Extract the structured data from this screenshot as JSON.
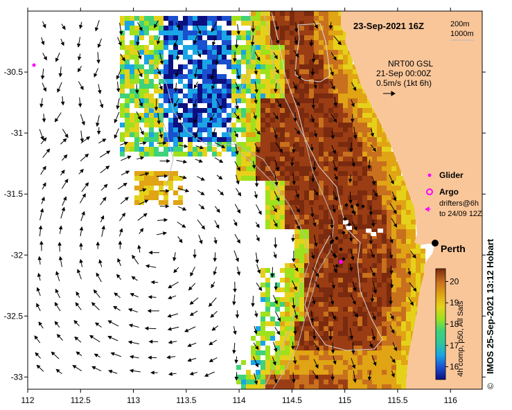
{
  "header": {
    "date_label": "23-Sep-2021 16Z",
    "contour_200": "200m",
    "contour_1000": "1000m"
  },
  "current_info": {
    "line1": "NRT00 GSL",
    "line2": "21-Sep 00:00Z",
    "line3": "0.5m/s (1kt 6h)"
  },
  "legend": {
    "glider": "Glider",
    "argo": "Argo",
    "drifters_line1": "drifters@6h",
    "drifters_line2": "to 24/09 12Z"
  },
  "city": {
    "name": "Perth",
    "lon": 115.86,
    "lat": -31.95
  },
  "colorbar": {
    "label": "4h comp, p50, All Sats",
    "ticks": [
      "16",
      "17",
      "18",
      "19",
      "20"
    ],
    "min": 15.4,
    "max": 20.6
  },
  "credit": "IMOS 25-Sep-2021 13:12 Hobart",
  "copyright_symbol": "©",
  "axes": {
    "x_ticks": [
      "112",
      "112.5",
      "113",
      "113.5",
      "114",
      "114.5",
      "115",
      "115.5",
      "116"
    ],
    "y_ticks": [
      "-30.5",
      "-31",
      "-31.5",
      "-32",
      "-32.5",
      "-33"
    ],
    "lon_range": [
      112.0,
      116.3
    ],
    "lat_range": [
      -33.1,
      -30.0
    ]
  },
  "colors": {
    "land": "#f9c69a",
    "glider": "#ff00ff",
    "argo": "#ff00ff",
    "drifter": "#ff00ff",
    "colorbar_stops": [
      "#0c0f80",
      "#1a4fd0",
      "#19a5e6",
      "#3fd27a",
      "#9ee11c",
      "#e6d11a",
      "#e0a414",
      "#c8701e",
      "#9a3d14",
      "#7a2a0e"
    ]
  }
}
